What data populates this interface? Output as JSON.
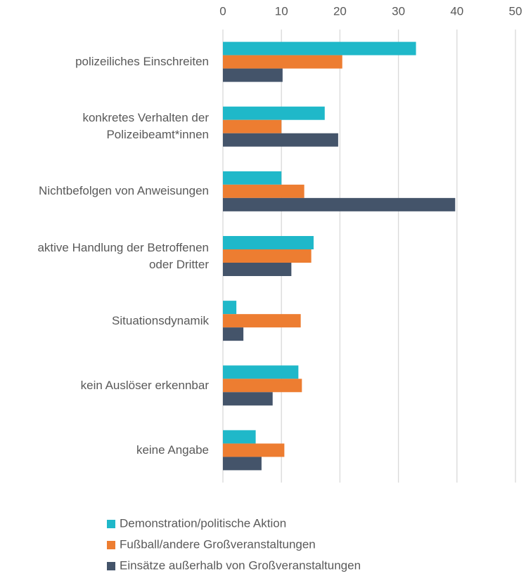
{
  "chart_data": {
    "type": "bar",
    "orientation": "horizontal",
    "categories": [
      "polizeiliches Einschreiten",
      "konkretes Verhalten der\nPolizeibeamt*innen",
      "Nichtbefolgen von Anweisungen",
      "aktive Handlung der Betroffenen\noder Dritter",
      "Situationsdynamik",
      "kein Auslöser erkennbar",
      "keine Angabe"
    ],
    "series": [
      {
        "name": "Demonstration/politische Aktion",
        "color": "#1fb8c9",
        "values": [
          33.0,
          17.4,
          10.0,
          15.5,
          2.3,
          12.9,
          5.6
        ]
      },
      {
        "name": "Fußball/andere Großveranstaltungen",
        "color": "#ed7d31",
        "values": [
          20.4,
          10.0,
          13.9,
          15.1,
          13.3,
          13.5,
          10.5
        ]
      },
      {
        "name": "Einsätze außerhalb von Großveranstaltungen",
        "color": "#44546a",
        "values": [
          10.2,
          19.7,
          39.7,
          11.7,
          3.5,
          8.5,
          6.6
        ]
      }
    ],
    "xlim": [
      0,
      50
    ],
    "xticks": [
      0,
      10,
      20,
      30,
      40,
      50
    ],
    "grid": true,
    "legend": "bottom"
  }
}
